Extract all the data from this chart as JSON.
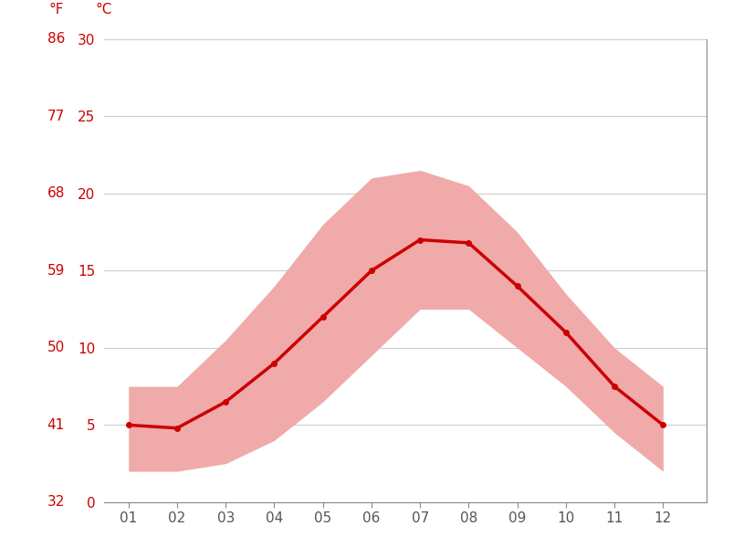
{
  "months": [
    1,
    2,
    3,
    4,
    5,
    6,
    7,
    8,
    9,
    10,
    11,
    12
  ],
  "month_labels": [
    "01",
    "02",
    "03",
    "04",
    "05",
    "06",
    "07",
    "08",
    "09",
    "10",
    "11",
    "12"
  ],
  "mean_temp": [
    5.0,
    4.8,
    6.5,
    9.0,
    12.0,
    15.0,
    17.0,
    16.8,
    14.0,
    11.0,
    7.5,
    5.0
  ],
  "max_temp": [
    7.5,
    7.5,
    10.5,
    14.0,
    18.0,
    21.0,
    21.5,
    20.5,
    17.5,
    13.5,
    10.0,
    7.5
  ],
  "min_temp": [
    2.0,
    2.0,
    2.5,
    4.0,
    6.5,
    9.5,
    12.5,
    12.5,
    10.0,
    7.5,
    4.5,
    2.0
  ],
  "ylim": [
    0,
    30
  ],
  "xlim": [
    0.5,
    12.9
  ],
  "yticks_c": [
    0,
    5,
    10,
    15,
    20,
    25,
    30
  ],
  "yticks_f": [
    32,
    41,
    50,
    59,
    68,
    77,
    86
  ],
  "line_color": "#cc0000",
  "band_color": "#f0aaaa",
  "grid_color": "#cccccc",
  "tick_label_color": "#555555",
  "red_label_color": "#cc0000",
  "background_color": "#ffffff",
  "left_label_f": "°F",
  "left_label_c": "°C",
  "figsize": [
    8.15,
    6.11
  ],
  "dpi": 100
}
